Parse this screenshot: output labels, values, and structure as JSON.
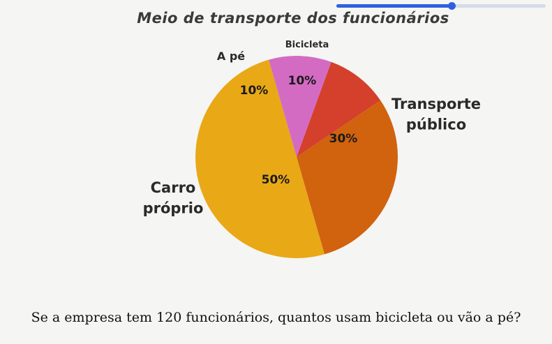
{
  "progress": {
    "value": 0.55,
    "color": "#2f5fe0",
    "track_color": "#d6dbe8"
  },
  "chart_data": {
    "type": "pie",
    "title": "Meio de transporte dos funcionários",
    "slices": [
      {
        "label": "Bicicleta",
        "display_label": [
          "Bicicleta"
        ],
        "value": 10,
        "percent_label": "10%",
        "color": "#d4402b"
      },
      {
        "label": "Transporte público",
        "display_label": [
          "Transporte",
          "público"
        ],
        "value": 30,
        "percent_label": "30%",
        "color": "#d1620e"
      },
      {
        "label": "Carro próprio",
        "display_label": [
          "Carro",
          "próprio"
        ],
        "value": 50,
        "percent_label": "50%",
        "color": "#e9a816"
      },
      {
        "label": "A pé",
        "display_label": [
          "A pé"
        ],
        "value": 10,
        "percent_label": "10%",
        "color": "#d36bc3"
      }
    ],
    "start_angle_deg": 20,
    "direction": "clockwise"
  },
  "question": "Se a empresa tem 120 funcionários, quantos usam bicicleta ou vão a pé?"
}
